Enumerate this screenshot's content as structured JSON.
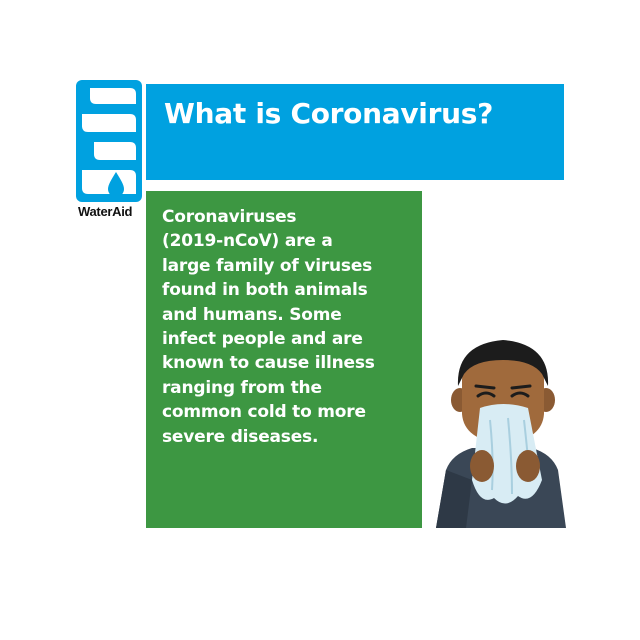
{
  "brand": {
    "logo_text": "WaterAid",
    "logo_icon": "wateraid-drop-logo-icon",
    "colors": {
      "blue": "#00a1e0",
      "green": "#3d9742"
    }
  },
  "header": {
    "title": "What is Coronavirus?"
  },
  "content": {
    "body": "Coronaviruses\n(2019-nCoV) are a\nlarge family of viruses\nfound in  both animals\nand humans. Some\ninfect people and are\nknown to cause illness\nranging from the\ncommon cold to more\nsevere diseases."
  },
  "illustration": {
    "icon": "person-sneezing-into-tissue-icon"
  }
}
